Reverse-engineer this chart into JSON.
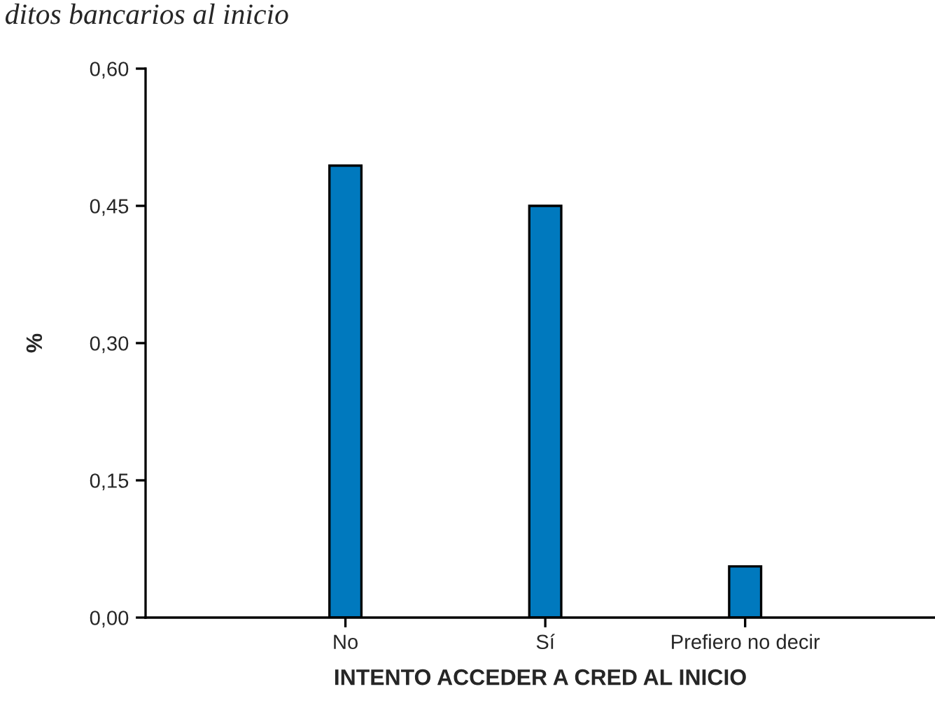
{
  "chart_data": {
    "type": "bar",
    "title": "ditos bancarios al inicio",
    "xlabel": "INTENTO ACCEDER A CRED AL INICIO",
    "ylabel": "%",
    "categories": [
      "No",
      "Sí",
      "Prefiero no decir"
    ],
    "values": [
      0.494,
      0.45,
      0.056
    ],
    "color": "#0079be",
    "ylim": [
      0,
      0.6
    ],
    "yticks": [
      {
        "value": 0,
        "label": "0,00"
      },
      {
        "value": 0.15,
        "label": "0,15"
      },
      {
        "value": 0.3,
        "label": "0,30"
      },
      {
        "value": 0.45,
        "label": "0,45"
      },
      {
        "value": 0.6,
        "label": "0,60"
      }
    ],
    "grid": false,
    "legend": false
  }
}
